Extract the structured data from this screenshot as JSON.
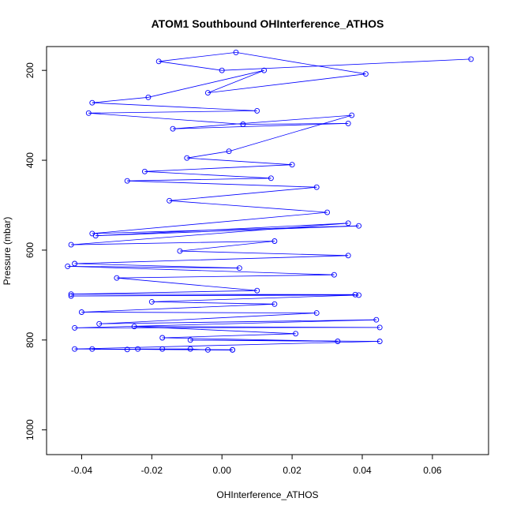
{
  "chart_data": {
    "type": "scatter",
    "title": "ATOM1 Southbound OHInterference_ATHOS",
    "xlabel": "OHInterference_ATHOS",
    "ylabel": "Pressure (mbar)",
    "xlim": [
      -0.05,
      0.076
    ],
    "ylim": [
      1055,
      147
    ],
    "y_reversed": true,
    "x_ticks": [
      -0.04,
      -0.02,
      0.0,
      0.02,
      0.04,
      0.06
    ],
    "x_tick_labels": [
      "-0.04",
      "-0.02",
      "0.00",
      "0.02",
      "0.04",
      "0.06"
    ],
    "y_ticks": [
      200,
      400,
      600,
      800,
      1000
    ],
    "y_tick_labels": [
      "200",
      "400",
      "600",
      "800",
      "1000"
    ],
    "grid": false,
    "legend": "none",
    "series_color": "#0000ff",
    "marker": "open-circle",
    "connect_points": true,
    "series": [
      {
        "points": [
          {
            "x": 0.071,
            "y": 175
          },
          {
            "x": 0.0,
            "y": 200
          },
          {
            "x": -0.018,
            "y": 180
          },
          {
            "x": 0.004,
            "y": 160
          },
          {
            "x": 0.041,
            "y": 208
          },
          {
            "x": -0.004,
            "y": 250
          },
          {
            "x": 0.012,
            "y": 200
          },
          {
            "x": -0.021,
            "y": 260
          },
          {
            "x": -0.037,
            "y": 272
          },
          {
            "x": 0.01,
            "y": 290
          },
          {
            "x": -0.038,
            "y": 295
          },
          {
            "x": 0.006,
            "y": 320
          },
          {
            "x": 0.036,
            "y": 318
          },
          {
            "x": -0.014,
            "y": 330
          },
          {
            "x": 0.037,
            "y": 300
          },
          {
            "x": 0.002,
            "y": 380
          },
          {
            "x": -0.01,
            "y": 395
          },
          {
            "x": 0.02,
            "y": 410
          },
          {
            "x": -0.022,
            "y": 425
          },
          {
            "x": 0.014,
            "y": 440
          },
          {
            "x": -0.027,
            "y": 446
          },
          {
            "x": 0.027,
            "y": 460
          },
          {
            "x": -0.015,
            "y": 490
          },
          {
            "x": 0.03,
            "y": 516
          },
          {
            "x": -0.037,
            "y": 563
          },
          {
            "x": 0.039,
            "y": 546
          },
          {
            "x": -0.036,
            "y": 568
          },
          {
            "x": 0.036,
            "y": 540
          },
          {
            "x": -0.043,
            "y": 588
          },
          {
            "x": 0.015,
            "y": 580
          },
          {
            "x": -0.012,
            "y": 602
          },
          {
            "x": 0.036,
            "y": 612
          },
          {
            "x": -0.042,
            "y": 630
          },
          {
            "x": 0.005,
            "y": 640
          },
          {
            "x": -0.044,
            "y": 636
          },
          {
            "x": 0.032,
            "y": 655
          },
          {
            "x": -0.03,
            "y": 662
          },
          {
            "x": 0.01,
            "y": 690
          },
          {
            "x": -0.043,
            "y": 698
          },
          {
            "x": 0.038,
            "y": 699
          },
          {
            "x": -0.043,
            "y": 702
          },
          {
            "x": 0.039,
            "y": 700
          },
          {
            "x": -0.02,
            "y": 715
          },
          {
            "x": 0.015,
            "y": 720
          },
          {
            "x": -0.04,
            "y": 738
          },
          {
            "x": 0.027,
            "y": 740
          },
          {
            "x": -0.035,
            "y": 764
          },
          {
            "x": 0.044,
            "y": 755
          },
          {
            "x": -0.042,
            "y": 773
          },
          {
            "x": 0.045,
            "y": 772
          },
          {
            "x": -0.025,
            "y": 770
          },
          {
            "x": 0.021,
            "y": 786
          },
          {
            "x": -0.017,
            "y": 795
          },
          {
            "x": 0.033,
            "y": 803
          },
          {
            "x": -0.009,
            "y": 800
          },
          {
            "x": 0.045,
            "y": 803
          },
          {
            "x": -0.042,
            "y": 820
          },
          {
            "x": 0.003,
            "y": 822
          },
          {
            "x": -0.037,
            "y": 820
          },
          {
            "x": -0.027,
            "y": 821
          },
          {
            "x": -0.024,
            "y": 820
          },
          {
            "x": -0.017,
            "y": 820
          },
          {
            "x": -0.009,
            "y": 820
          },
          {
            "x": -0.004,
            "y": 822
          },
          {
            "x": 0.003,
            "y": 822
          }
        ]
      }
    ]
  }
}
